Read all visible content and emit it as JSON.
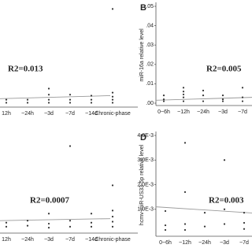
{
  "chart_data": [
    {
      "type": "scatter",
      "annotation": "R2=0.013",
      "color": "#333333",
      "fit_color": "#999999",
      "categories": [
        "12h",
        "~24h",
        "~3d",
        "~7d",
        "~14d",
        "Chronic-phase"
      ],
      "x": [
        "12h",
        "12h",
        "~24h",
        "~24h",
        "~3d",
        "~3d",
        "~3d",
        "~3d",
        "~7d",
        "~7d",
        "~7d",
        "~14d",
        "~14d",
        "~14d",
        "Chronic-phase",
        "Chronic-phase",
        "Chronic-phase",
        "Chronic-phase",
        "Chronic-phase"
      ],
      "values": [
        0.005,
        0.002,
        0.005,
        0.002,
        0.016,
        0.01,
        0.005,
        0.002,
        0.01,
        0.005,
        0.002,
        0.009,
        0.005,
        0.002,
        0.095,
        0.012,
        0.008,
        0.005,
        0.002
      ],
      "fit_line": [
        0.006,
        0.009
      ],
      "ylim": [
        0,
        0.1
      ]
    },
    {
      "type": "scatter",
      "label": "B",
      "annotation": "R2=0.005",
      "ylabel": "miR-16a relative level",
      "color": "#333333",
      "fit_color": "#999999",
      "categories": [
        "0~6h",
        "~12h",
        "~24h",
        "~3d",
        "~7d"
      ],
      "x": [
        "0~6h",
        "0~6h",
        "0~6h",
        "~12h",
        "~12h",
        "~12h",
        "~12h",
        "~12h",
        "~24h",
        "~24h",
        "~24h",
        "~3d",
        "~3d",
        "~3d",
        "~7d",
        "~7d",
        "~7d"
      ],
      "values": [
        0.004,
        0.002,
        0.001,
        0.008,
        0.006,
        0.0045,
        0.003,
        0.001,
        0.0065,
        0.004,
        0.001,
        0.004,
        0.002,
        0.001,
        0.008,
        0.003,
        0.001
      ],
      "fit_line": [
        0.0015,
        0.003
      ],
      "ylim": [
        0,
        0.05
      ],
      "yticks": [
        {
          "value": 0.05,
          "label": ".05"
        },
        {
          "value": 0.04,
          "label": ".04"
        },
        {
          "value": 0.03,
          "label": ".03"
        },
        {
          "value": 0.02,
          "label": ".02"
        },
        {
          "value": 0.01,
          "label": ".01"
        },
        {
          "value": 0,
          "label": ".00"
        }
      ]
    },
    {
      "type": "scatter",
      "annotation": "R2=0.0007",
      "color": "#333333",
      "fit_color": "#999999",
      "categories": [
        "12h",
        "~24h",
        "~3d",
        "~7d",
        "~14d",
        "Chronic-phase"
      ],
      "x": [
        "12h",
        "12h",
        "~24h",
        "~24h",
        "~3d",
        "~3d",
        "~3d",
        "~7d",
        "~7d",
        "~7d",
        "~14d",
        "~14d",
        "~14d",
        "Chronic-phase",
        "Chronic-phase",
        "Chronic-phase",
        "Chronic-phase",
        "Chronic-phase"
      ],
      "values": [
        0.008,
        0.004,
        0.01,
        0.005,
        0.017,
        0.007,
        0.003,
        0.084,
        0.01,
        0.004,
        0.017,
        0.008,
        0.004,
        0.045,
        0.02,
        0.014,
        0.009,
        0.004
      ],
      "fit_line": [
        0.01,
        0.012
      ],
      "ylim": [
        0,
        0.1
      ]
    },
    {
      "type": "scatter",
      "label": "D",
      "annotation": "R2=0.003",
      "ylabel": "hcmv-miR-US33-5p relative level",
      "color": "#333333",
      "fit_color": "#999999",
      "categories": [
        "0~6h",
        "~12h",
        "~24h",
        "~3d",
        "~7d"
      ],
      "x": [
        "0~6h",
        "0~6h",
        "0~6h",
        "~12h",
        "~12h",
        "~12h",
        "~12h",
        "~24h",
        "~24h",
        "~3d",
        "~3d",
        "~3d",
        "~7d",
        "~7d",
        "~7d"
      ],
      "values": [
        0.00093,
        0.00035,
        0.00016,
        0.0037,
        0.0017,
        0.0004,
        0.00016,
        0.00086,
        0.0003,
        0.003,
        0.001,
        0.0004,
        0.00086,
        0.00045,
        0.0002
      ],
      "fit_line": [
        0.0011,
        0.00085
      ],
      "ylim": [
        0,
        0.004
      ],
      "yticks": [
        {
          "value": 0.004,
          "label": "4.0E-3"
        },
        {
          "value": 0.003,
          "label": "3.0E-3"
        },
        {
          "value": 0.002,
          "label": "2.0E-3"
        },
        {
          "value": 0.001,
          "label": "1.0E-3"
        }
      ]
    }
  ]
}
